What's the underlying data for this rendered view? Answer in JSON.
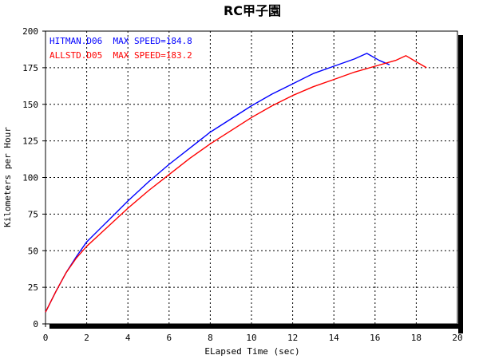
{
  "chart_data": {
    "type": "line",
    "title": "RC甲子園",
    "xlabel": "ELapsed Time (sec)",
    "ylabel": "Kilometers per Hour",
    "xlim": [
      0,
      20
    ],
    "ylim": [
      0,
      200
    ],
    "xticks": [
      "0",
      "2",
      "4",
      "6",
      "8",
      "10",
      "12",
      "14",
      "16",
      "18",
      "20"
    ],
    "yticks": [
      "0",
      "25",
      "50",
      "75",
      "100",
      "125",
      "150",
      "175",
      "200"
    ],
    "grid": true,
    "legend_position": "top-left",
    "series": [
      {
        "name": "HITMAN.D06  MAX SPEED=184.8",
        "color": "#0000ff",
        "points": [
          [
            0,
            8
          ],
          [
            0.5,
            22
          ],
          [
            1,
            35
          ],
          [
            1.5,
            46
          ],
          [
            2,
            56
          ],
          [
            3,
            70
          ],
          [
            4,
            84
          ],
          [
            5,
            97
          ],
          [
            6,
            109
          ],
          [
            7,
            120
          ],
          [
            8,
            131
          ],
          [
            9,
            140
          ],
          [
            10,
            149
          ],
          [
            11,
            157
          ],
          [
            12,
            164
          ],
          [
            13,
            171
          ],
          [
            14,
            176
          ],
          [
            15,
            181
          ],
          [
            15.6,
            184.8
          ],
          [
            16.2,
            180
          ],
          [
            16.7,
            177
          ]
        ]
      },
      {
        "name": "ALLSTD.D05  MAX SPEED=183.2",
        "color": "#ff0000",
        "points": [
          [
            0,
            8
          ],
          [
            0.5,
            22
          ],
          [
            1,
            35
          ],
          [
            1.5,
            45
          ],
          [
            2,
            53
          ],
          [
            3,
            66
          ],
          [
            4,
            79
          ],
          [
            5,
            91
          ],
          [
            6,
            102
          ],
          [
            7,
            113
          ],
          [
            8,
            123
          ],
          [
            9,
            132
          ],
          [
            10,
            141
          ],
          [
            11,
            149
          ],
          [
            12,
            156
          ],
          [
            13,
            162
          ],
          [
            14,
            167
          ],
          [
            15,
            172
          ],
          [
            16,
            176
          ],
          [
            17,
            180
          ],
          [
            17.5,
            183.2
          ],
          [
            18,
            179
          ],
          [
            18.5,
            175
          ]
        ]
      }
    ]
  }
}
